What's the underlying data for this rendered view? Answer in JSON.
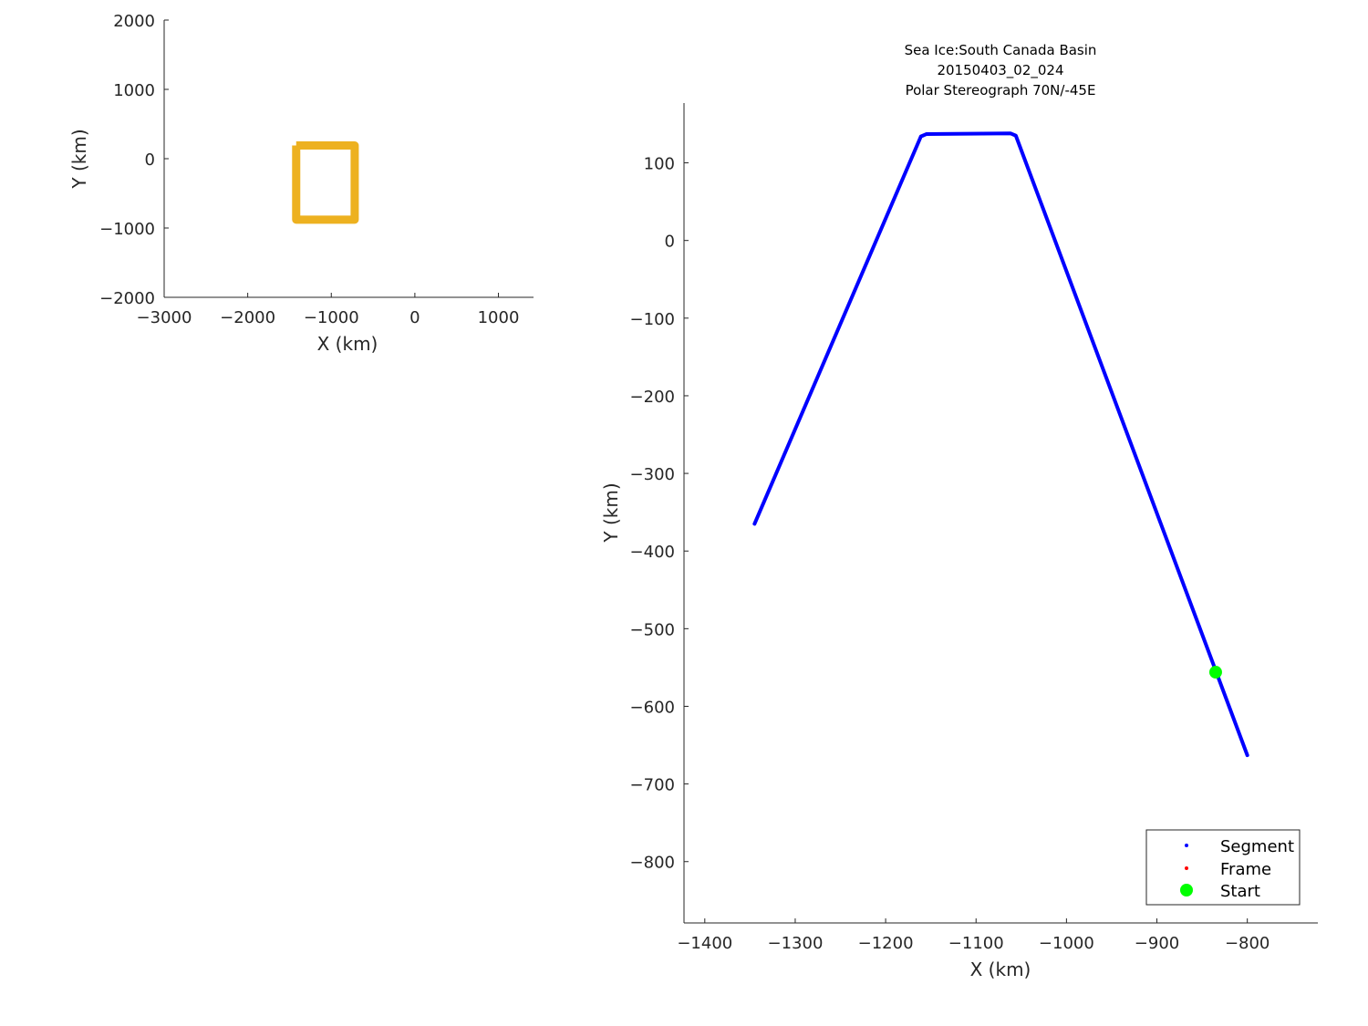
{
  "chart_data": [
    {
      "type": "line",
      "xlabel": "X (km)",
      "ylabel": "Y (km)",
      "xlim": [
        -3000,
        1420
      ],
      "ylim": [
        -2000,
        2000
      ],
      "xticks": [
        -3000,
        -2000,
        -1000,
        0,
        1000
      ],
      "yticks": [
        -2000,
        -1000,
        0,
        1000,
        2000
      ],
      "grid": false,
      "series": [
        {
          "color": "#EDB120",
          "x": [
            -1420,
            -720,
            -720,
            -1420,
            -1420
          ],
          "y": [
            190,
            190,
            -880,
            -880,
            190
          ]
        }
      ]
    },
    {
      "type": "line",
      "title": [
        "Sea Ice:South Canada Basin",
        "20150403_02_024",
        "Polar Stereograph 70N/-45E"
      ],
      "xlabel": "X (km)",
      "ylabel": "Y (km)",
      "xlim": [
        -1423,
        -722
      ],
      "ylim": [
        -879,
        177
      ],
      "xticks": [
        -1400,
        -1300,
        -1200,
        -1100,
        -1000,
        -900,
        -800
      ],
      "yticks": [
        -800,
        -700,
        -600,
        -500,
        -400,
        -300,
        -200,
        -100,
        0,
        100
      ],
      "grid": false,
      "legend_position": "bottom-right",
      "series": [
        {
          "name": "Segment",
          "color": "#0000FF",
          "x": [
            -1345,
            -1161,
            -1155,
            -1062,
            -1056,
            -800
          ],
          "y": [
            -365,
            134,
            137,
            138,
            135,
            -663
          ]
        },
        {
          "name": "Frame",
          "color": "#FF0000",
          "x": [],
          "y": []
        },
        {
          "name": "Start",
          "color": "#00FF00",
          "x": [
            -835
          ],
          "y": [
            -556
          ]
        }
      ]
    }
  ]
}
